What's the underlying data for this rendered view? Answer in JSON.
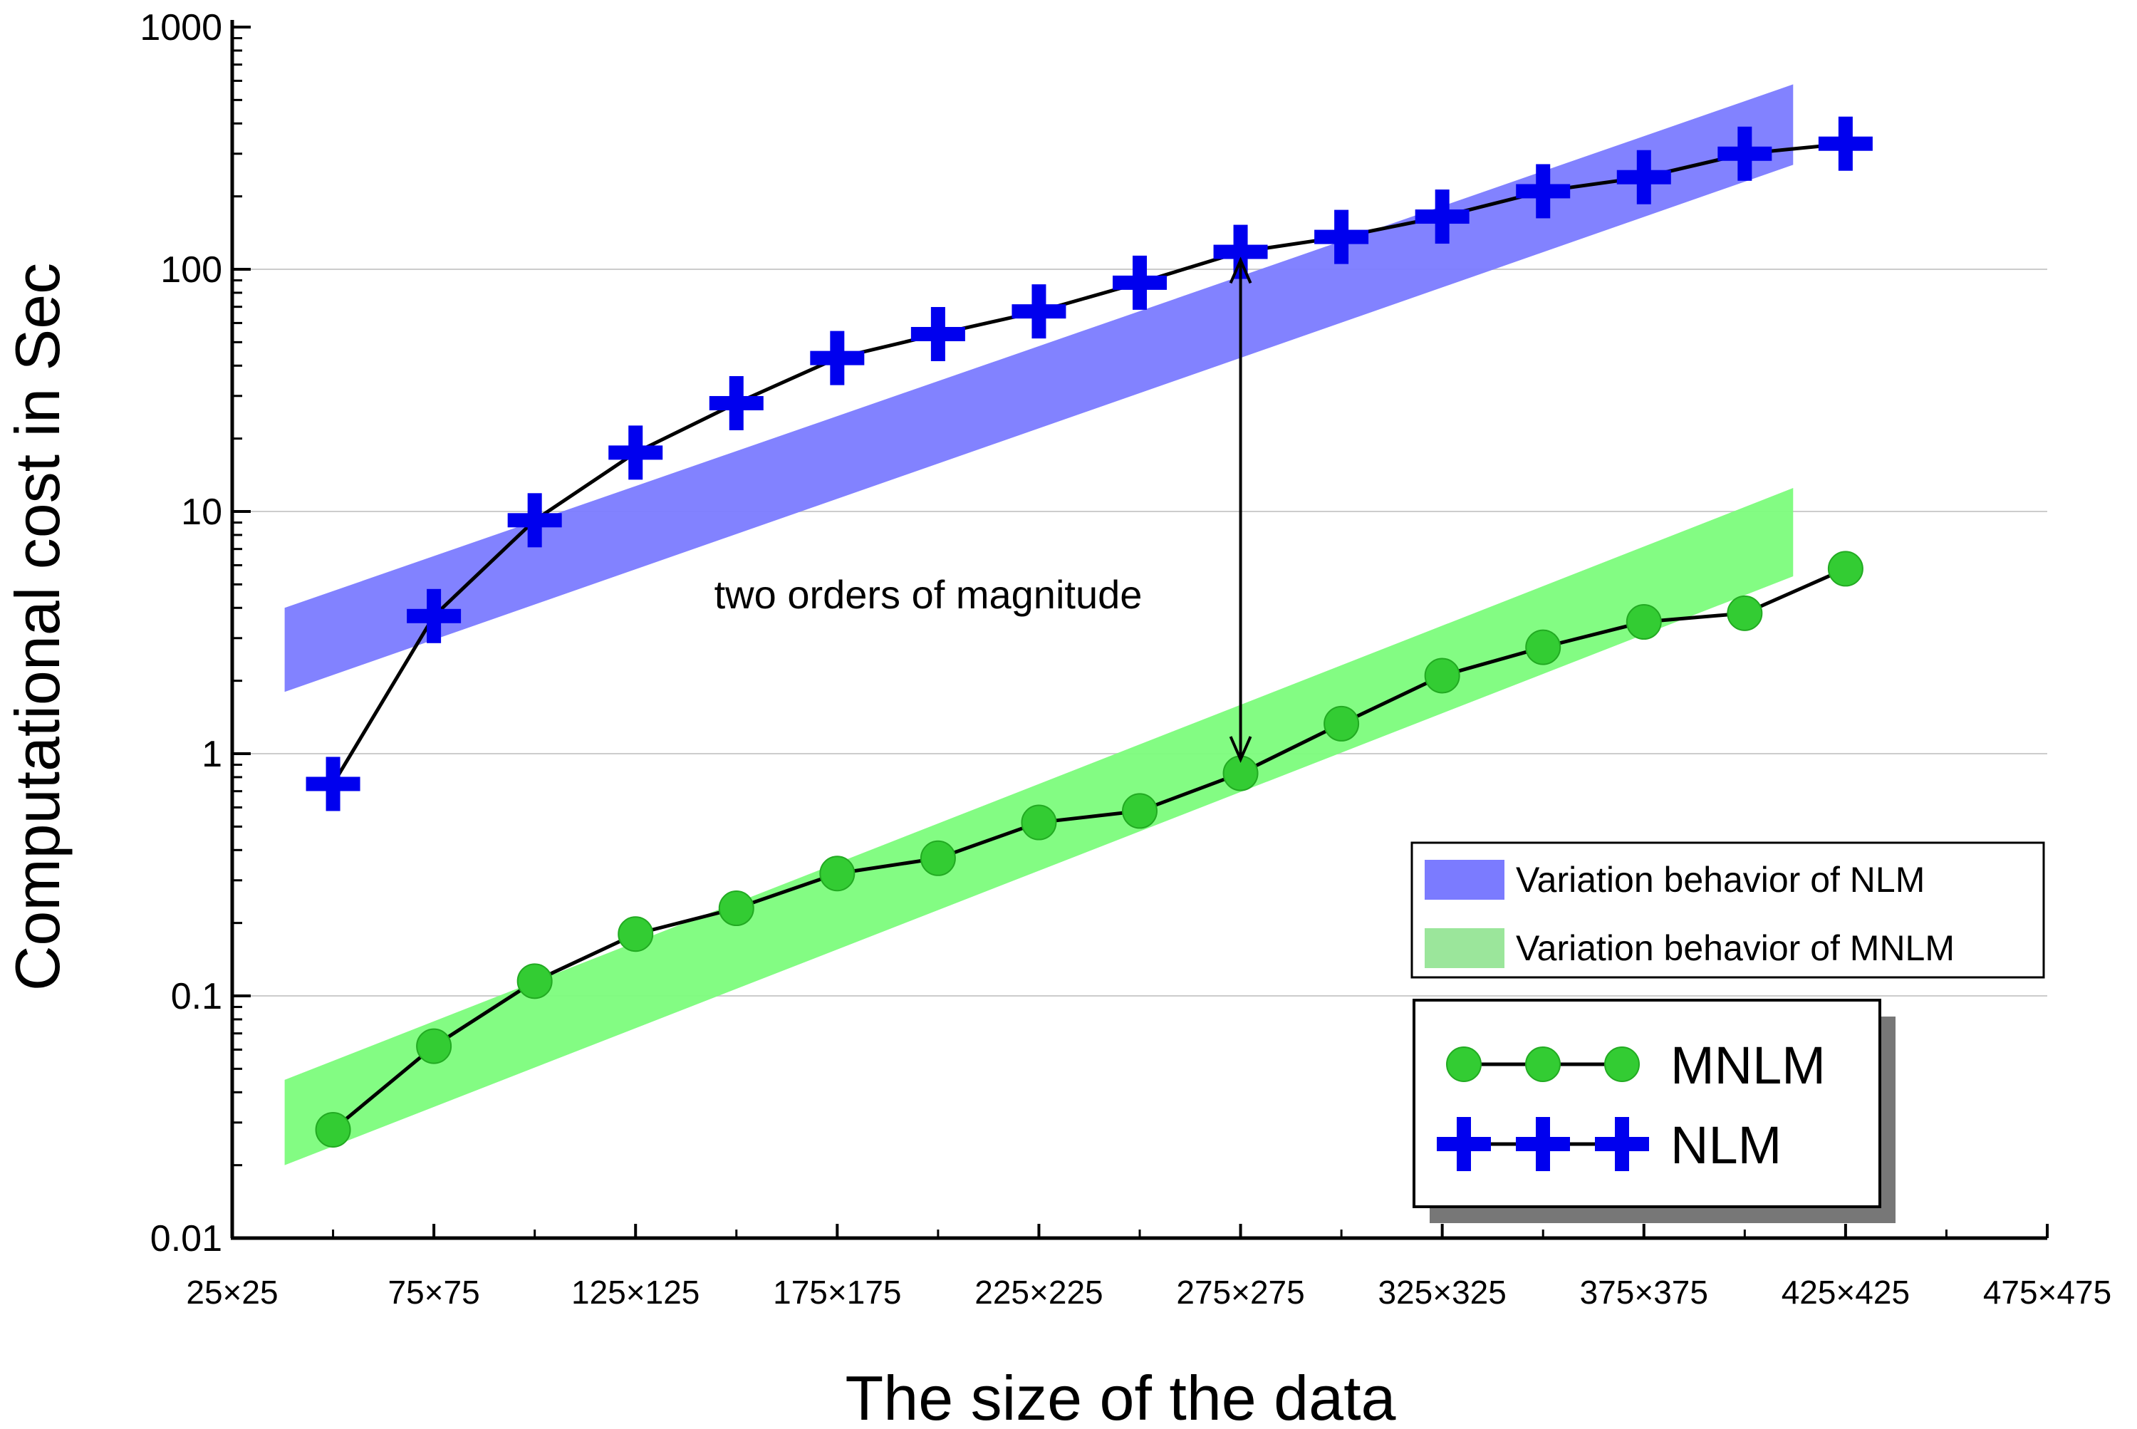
{
  "chart_data": {
    "type": "line",
    "yscale": "log",
    "ylim": [
      0.01,
      1000
    ],
    "xlim": [
      25,
      475
    ],
    "xlabel": "The size of the data",
    "ylabel": "Computational cost in Sec",
    "grid": true,
    "y_ticks": [
      {
        "value": 0.01,
        "label": "0.01"
      },
      {
        "value": 0.1,
        "label": "0.1"
      },
      {
        "value": 1,
        "label": "1"
      },
      {
        "value": 10,
        "label": "10"
      },
      {
        "value": 100,
        "label": "100"
      },
      {
        "value": 1000,
        "label": "1000"
      }
    ],
    "x_ticks": [
      {
        "value": 25,
        "label": "25×25"
      },
      {
        "value": 75,
        "label": "75×75"
      },
      {
        "value": 125,
        "label": "125×125"
      },
      {
        "value": 175,
        "label": "175×175"
      },
      {
        "value": 225,
        "label": "225×225"
      },
      {
        "value": 275,
        "label": "275×275"
      },
      {
        "value": 325,
        "label": "325×325"
      },
      {
        "value": 375,
        "label": "375×375"
      },
      {
        "value": 425,
        "label": "425×425"
      },
      {
        "value": 475,
        "label": "475×475"
      }
    ],
    "x": [
      50,
      75,
      100,
      125,
      150,
      175,
      200,
      225,
      250,
      275,
      300,
      325,
      350,
      375,
      400,
      425
    ],
    "series": [
      {
        "name": "MNLM",
        "marker": "circle",
        "color": "#33cc33",
        "values": [
          0.028,
          0.062,
          0.115,
          0.18,
          0.23,
          0.32,
          0.37,
          0.52,
          0.58,
          0.83,
          1.33,
          2.1,
          2.75,
          3.5,
          3.8,
          5.8
        ]
      },
      {
        "name": "NLM",
        "marker": "plus",
        "color": "#0000ee",
        "values": [
          0.75,
          3.7,
          9.2,
          17.5,
          28,
          43,
          54,
          67,
          88,
          118,
          136,
          165,
          210,
          240,
          300,
          330
        ]
      }
    ],
    "bands": [
      {
        "name": "Variation behavior of NLM",
        "color": "#7b7bff",
        "x": [
          38,
          412
        ],
        "upper": [
          4.0,
          580
        ],
        "lower": [
          1.8,
          270
        ]
      },
      {
        "name": "Variation behavior of MNLM",
        "color": "#7cfc7c",
        "legend_color": "#9be69b",
        "x": [
          38,
          412
        ],
        "upper": [
          0.045,
          12.5
        ],
        "lower": [
          0.02,
          5.4
        ]
      }
    ],
    "annotation": {
      "text": "two orders of magnitude",
      "arrow_x": 275,
      "arrow_from": 0.85,
      "arrow_to": 115
    },
    "legend_position": "bottom-right"
  }
}
